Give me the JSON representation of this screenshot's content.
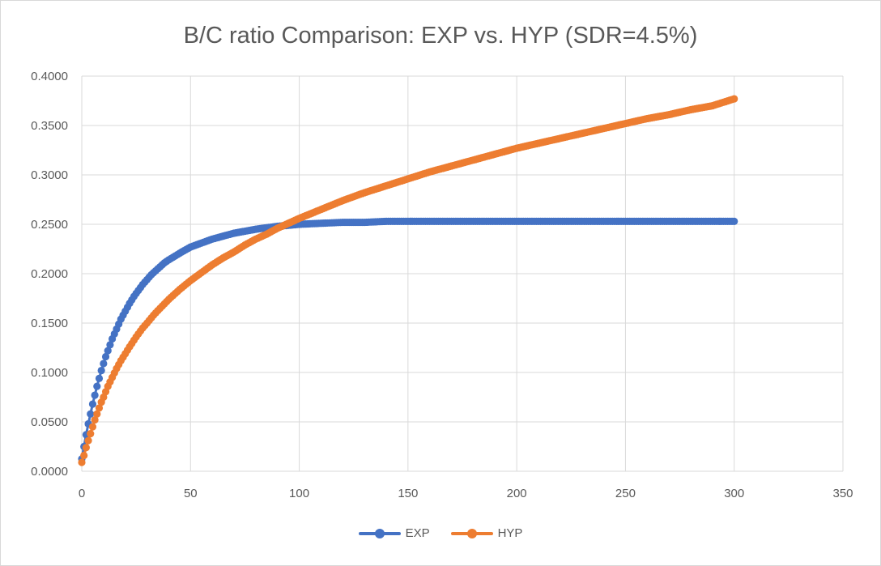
{
  "chart_data": {
    "type": "scatter",
    "title": "B/C ratio Comparison: EXP vs. HYP (SDR=4.5%)",
    "xlabel": "",
    "ylabel": "",
    "xlim": [
      0,
      350
    ],
    "ylim": [
      0,
      0.4
    ],
    "x_ticks": [
      0,
      50,
      100,
      150,
      200,
      250,
      300,
      350
    ],
    "y_ticks": [
      "0.0000",
      "0.0500",
      "0.1000",
      "0.1500",
      "0.2000",
      "0.2500",
      "0.3000",
      "0.3500",
      "0.4000"
    ],
    "grid": true,
    "legend_position": "bottom",
    "series": [
      {
        "name": "EXP",
        "color": "#4472C4",
        "x": [
          0,
          1,
          2,
          3,
          4,
          5,
          6,
          7,
          8,
          9,
          10,
          11,
          12,
          13,
          14,
          15,
          16,
          17,
          18,
          19,
          20,
          22,
          24,
          26,
          28,
          30,
          32,
          34,
          36,
          38,
          40,
          43,
          46,
          50,
          55,
          60,
          65,
          70,
          75,
          80,
          90,
          100,
          110,
          120,
          130,
          140,
          147,
          150,
          160,
          175,
          200,
          225,
          250,
          275,
          300
        ],
        "values": [
          0.0125,
          0.025,
          0.037,
          0.048,
          0.058,
          0.068,
          0.077,
          0.086,
          0.094,
          0.102,
          0.109,
          0.116,
          0.122,
          0.128,
          0.134,
          0.139,
          0.144,
          0.149,
          0.154,
          0.158,
          0.162,
          0.17,
          0.177,
          0.183,
          0.189,
          0.194,
          0.199,
          0.203,
          0.207,
          0.211,
          0.214,
          0.218,
          0.222,
          0.227,
          0.231,
          0.235,
          0.238,
          0.241,
          0.243,
          0.245,
          0.248,
          0.25,
          0.251,
          0.252,
          0.252,
          0.253,
          0.253,
          0.253,
          0.253,
          0.253,
          0.253,
          0.253,
          0.253,
          0.253,
          0.253
        ]
      },
      {
        "name": "HYP",
        "color": "#ED7D31",
        "x": [
          0,
          1,
          2,
          3,
          4,
          5,
          6,
          7,
          8,
          9,
          10,
          12,
          14,
          16,
          18,
          20,
          22,
          25,
          28,
          30,
          33,
          36,
          40,
          45,
          50,
          55,
          60,
          65,
          70,
          75,
          80,
          85,
          90,
          95,
          100,
          110,
          120,
          130,
          140,
          150,
          160,
          170,
          180,
          190,
          200,
          210,
          220,
          230,
          240,
          250,
          260,
          270,
          280,
          290,
          300
        ],
        "values": [
          0.009,
          0.016,
          0.024,
          0.031,
          0.038,
          0.045,
          0.052,
          0.058,
          0.064,
          0.07,
          0.075,
          0.086,
          0.095,
          0.104,
          0.112,
          0.119,
          0.126,
          0.136,
          0.145,
          0.15,
          0.158,
          0.165,
          0.174,
          0.184,
          0.193,
          0.201,
          0.209,
          0.216,
          0.222,
          0.229,
          0.235,
          0.24,
          0.246,
          0.251,
          0.256,
          0.265,
          0.274,
          0.282,
          0.289,
          0.296,
          0.303,
          0.309,
          0.315,
          0.321,
          0.327,
          0.332,
          0.337,
          0.342,
          0.347,
          0.352,
          0.357,
          0.361,
          0.366,
          0.37,
          0.377
        ]
      }
    ]
  }
}
